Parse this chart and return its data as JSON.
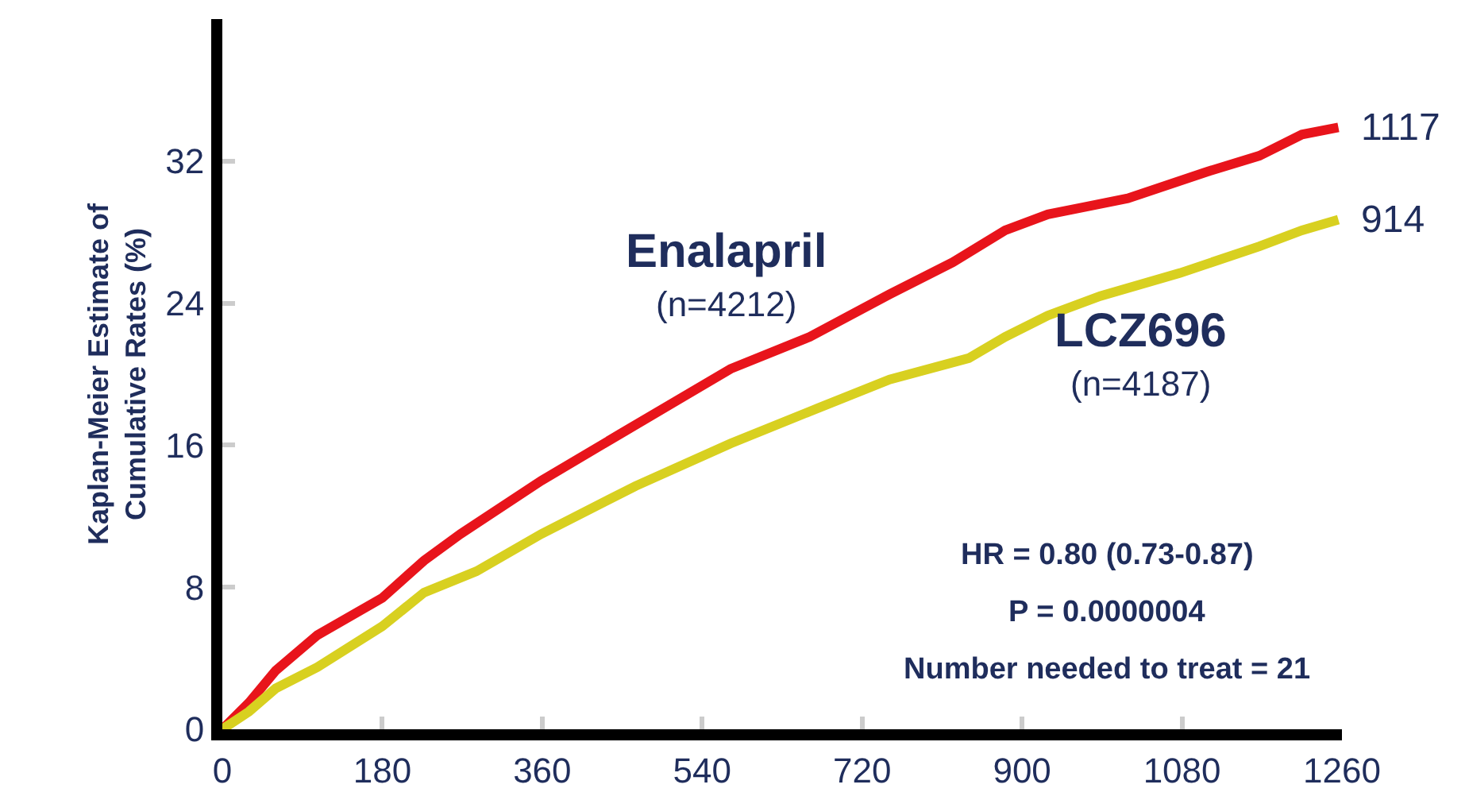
{
  "chart_data": {
    "type": "line",
    "ylabel": "Kaplan-Meier Estimate of\nCumulative Rates (%)",
    "xlim": [
      0,
      1260
    ],
    "xticks": [
      0,
      180,
      360,
      540,
      720,
      900,
      1080,
      1260
    ],
    "ylim": [
      0,
      40
    ],
    "yticks": [
      0,
      8,
      16,
      24,
      32
    ],
    "grid": false,
    "legend": false,
    "marker": "none",
    "line_style": "solid",
    "series": [
      {
        "name": "Enalapril",
        "color": "#e8141b",
        "x": [
          0,
          30,
          60,
          107,
          180,
          227,
          268,
          359,
          450,
          572,
          661,
          751,
          822,
          881,
          929,
          1019,
          1108,
          1167,
          1215,
          1256
        ],
        "values": [
          0,
          1.5,
          3.3,
          5.3,
          7.4,
          9.5,
          11.0,
          14.0,
          16.7,
          20.3,
          22.1,
          24.5,
          26.3,
          28.1,
          29.0,
          29.9,
          31.4,
          32.3,
          33.5,
          33.9
        ]
      },
      {
        "name": "LCZ696",
        "color": "#d8d020",
        "x": [
          0,
          30,
          60,
          107,
          180,
          227,
          286,
          359,
          465,
          572,
          661,
          751,
          840,
          881,
          929,
          988,
          1078,
          1167,
          1215,
          1256
        ],
        "values": [
          0,
          1.0,
          2.3,
          3.5,
          5.8,
          7.7,
          8.9,
          11.0,
          13.7,
          16.1,
          17.9,
          19.7,
          20.9,
          22.1,
          23.3,
          24.4,
          25.7,
          27.2,
          28.1,
          28.7
        ]
      }
    ],
    "annotations": [
      {
        "text": "1117",
        "x": 1256,
        "y": 33.9
      },
      {
        "text": "914",
        "x": 1256,
        "y": 28.7
      },
      "(n=4212)",
      "(n=4187)",
      "HR = 0.80 (0.73-0.87)",
      "P = 0.0000004",
      "Number needed to treat = 21"
    ]
  }
}
